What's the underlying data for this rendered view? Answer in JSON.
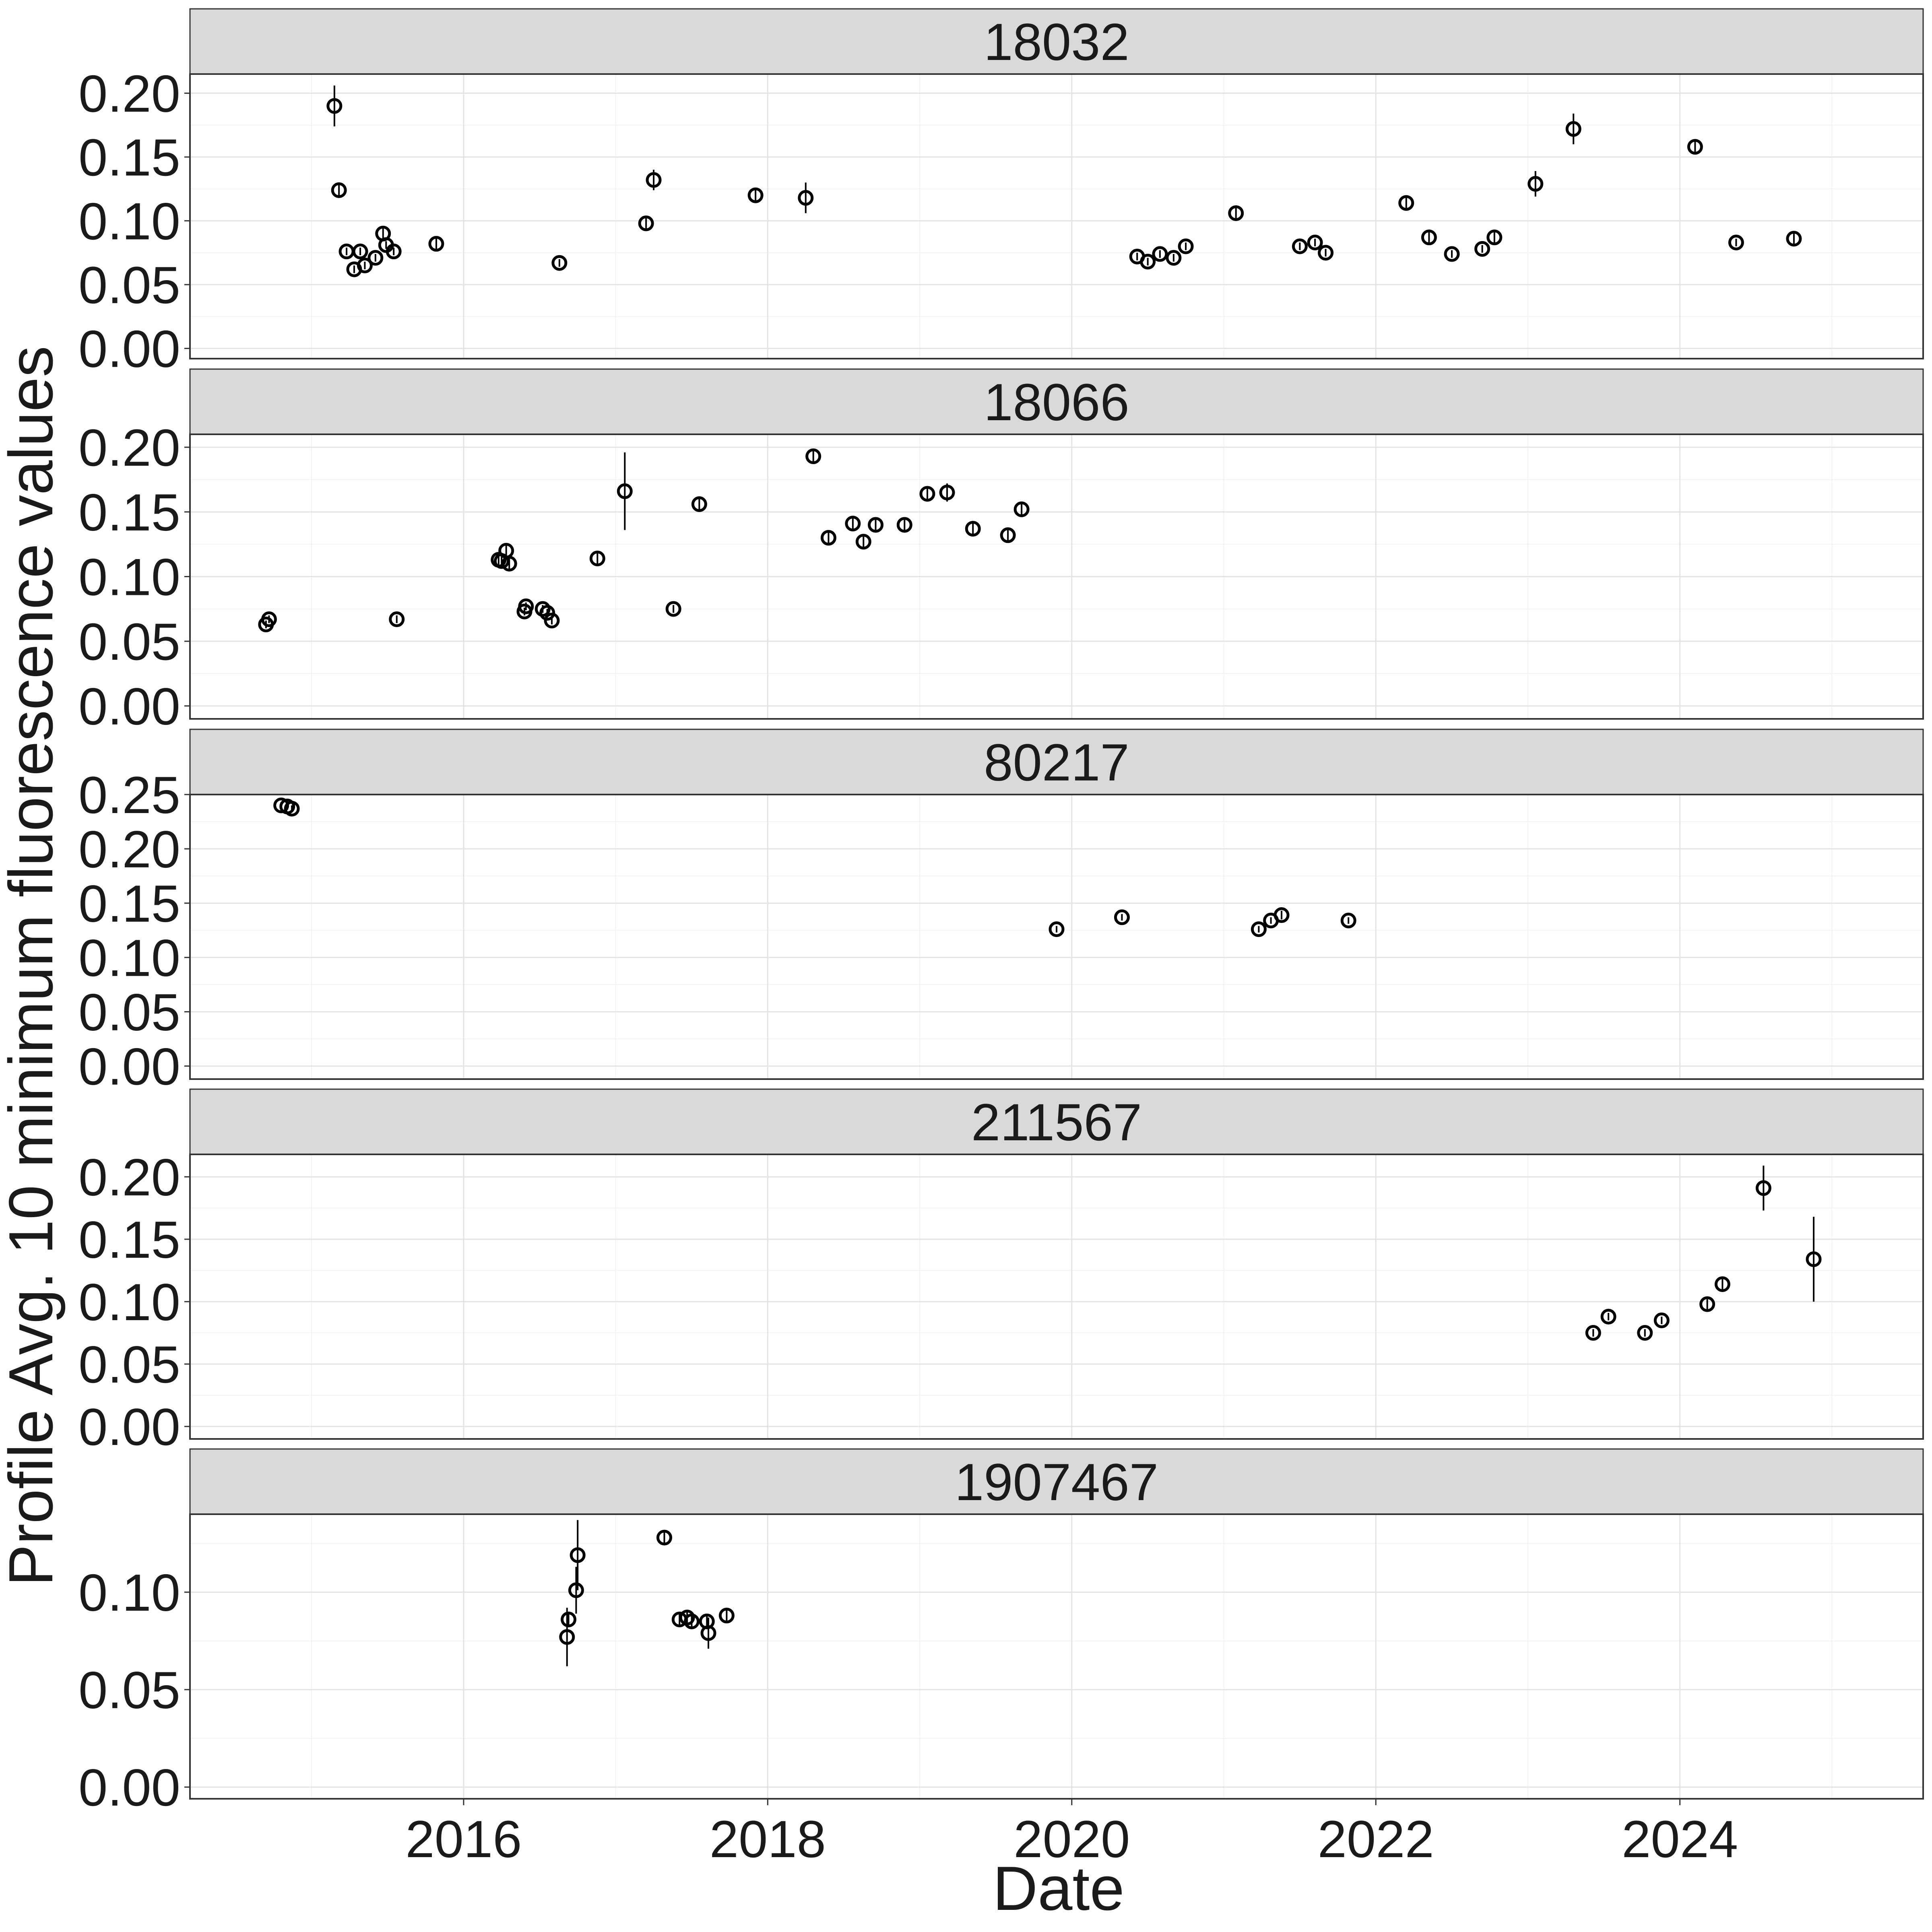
{
  "chart_data": {
    "type": "scatter",
    "xlabel": "Date",
    "ylabel": "Profile Avg. 10 minimum fluorescence values",
    "x_ticks": [
      "2016",
      "2018",
      "2020",
      "2022",
      "2024"
    ],
    "x_tick_values": [
      2016,
      2018,
      2020,
      2022,
      2024
    ],
    "xlim": [
      2014.2,
      2025.6
    ],
    "grid": true,
    "legend": "none",
    "point_style": "open-circle-with-error-bar",
    "panels": [
      {
        "label": "18032",
        "ylim": [
          -0.008,
          0.215
        ],
        "y_ticks": [
          "0.00",
          "0.05",
          "0.10",
          "0.15",
          "0.20"
        ],
        "y_tick_values": [
          0,
          0.05,
          0.1,
          0.15,
          0.2
        ],
        "points": [
          {
            "x": 2015.15,
            "y": 0.19,
            "err": 0.016
          },
          {
            "x": 2015.18,
            "y": 0.124,
            "err": 0.004
          },
          {
            "x": 2015.23,
            "y": 0.076,
            "err": 0.003
          },
          {
            "x": 2015.28,
            "y": 0.062,
            "err": 0.003
          },
          {
            "x": 2015.32,
            "y": 0.076,
            "err": 0.003
          },
          {
            "x": 2015.35,
            "y": 0.065,
            "err": 0.003
          },
          {
            "x": 2015.42,
            "y": 0.071,
            "err": 0.003
          },
          {
            "x": 2015.47,
            "y": 0.09,
            "err": 0.004
          },
          {
            "x": 2015.49,
            "y": 0.081,
            "err": 0.003
          },
          {
            "x": 2015.54,
            "y": 0.076,
            "err": 0.003
          },
          {
            "x": 2015.82,
            "y": 0.082,
            "err": 0.004
          },
          {
            "x": 2016.63,
            "y": 0.067,
            "err": 0.003
          },
          {
            "x": 2017.2,
            "y": 0.098,
            "err": 0.004
          },
          {
            "x": 2017.25,
            "y": 0.132,
            "err": 0.008
          },
          {
            "x": 2017.92,
            "y": 0.12,
            "err": 0.004
          },
          {
            "x": 2018.25,
            "y": 0.118,
            "err": 0.012
          },
          {
            "x": 2020.43,
            "y": 0.072,
            "err": 0.003
          },
          {
            "x": 2020.5,
            "y": 0.068,
            "err": 0.003
          },
          {
            "x": 2020.58,
            "y": 0.074,
            "err": 0.003
          },
          {
            "x": 2020.67,
            "y": 0.071,
            "err": 0.003
          },
          {
            "x": 2020.75,
            "y": 0.08,
            "err": 0.003
          },
          {
            "x": 2021.08,
            "y": 0.106,
            "err": 0.004
          },
          {
            "x": 2021.5,
            "y": 0.08,
            "err": 0.003
          },
          {
            "x": 2021.6,
            "y": 0.083,
            "err": 0.003
          },
          {
            "x": 2021.67,
            "y": 0.075,
            "err": 0.003
          },
          {
            "x": 2022.2,
            "y": 0.114,
            "err": 0.004
          },
          {
            "x": 2022.35,
            "y": 0.087,
            "err": 0.004
          },
          {
            "x": 2022.5,
            "y": 0.074,
            "err": 0.003
          },
          {
            "x": 2022.7,
            "y": 0.078,
            "err": 0.003
          },
          {
            "x": 2022.78,
            "y": 0.087,
            "err": 0.004
          },
          {
            "x": 2023.05,
            "y": 0.129,
            "err": 0.01
          },
          {
            "x": 2023.3,
            "y": 0.172,
            "err": 0.012
          },
          {
            "x": 2024.1,
            "y": 0.158,
            "err": 0.004
          },
          {
            "x": 2024.37,
            "y": 0.083,
            "err": 0.003
          },
          {
            "x": 2024.75,
            "y": 0.086,
            "err": 0.004
          }
        ]
      },
      {
        "label": "18066",
        "ylim": [
          -0.01,
          0.21
        ],
        "y_ticks": [
          "0.00",
          "0.05",
          "0.10",
          "0.15",
          "0.20"
        ],
        "y_tick_values": [
          0,
          0.05,
          0.1,
          0.15,
          0.2
        ],
        "points": [
          {
            "x": 2014.7,
            "y": 0.063,
            "err": 0.003
          },
          {
            "x": 2014.72,
            "y": 0.067,
            "err": 0.003
          },
          {
            "x": 2015.56,
            "y": 0.067,
            "err": 0.003
          },
          {
            "x": 2016.23,
            "y": 0.113,
            "err": 0.004
          },
          {
            "x": 2016.25,
            "y": 0.112,
            "err": 0.004
          },
          {
            "x": 2016.28,
            "y": 0.12,
            "err": 0.005
          },
          {
            "x": 2016.3,
            "y": 0.11,
            "err": 0.004
          },
          {
            "x": 2016.4,
            "y": 0.073,
            "err": 0.003
          },
          {
            "x": 2016.41,
            "y": 0.077,
            "err": 0.003
          },
          {
            "x": 2016.52,
            "y": 0.075,
            "err": 0.003
          },
          {
            "x": 2016.55,
            "y": 0.072,
            "err": 0.003
          },
          {
            "x": 2016.58,
            "y": 0.066,
            "err": 0.003
          },
          {
            "x": 2016.88,
            "y": 0.114,
            "err": 0.004
          },
          {
            "x": 2017.06,
            "y": 0.166,
            "err": 0.03
          },
          {
            "x": 2017.38,
            "y": 0.075,
            "err": 0.003
          },
          {
            "x": 2017.55,
            "y": 0.156,
            "err": 0.005
          },
          {
            "x": 2018.3,
            "y": 0.193,
            "err": 0.005
          },
          {
            "x": 2018.4,
            "y": 0.13,
            "err": 0.004
          },
          {
            "x": 2018.56,
            "y": 0.141,
            "err": 0.004
          },
          {
            "x": 2018.63,
            "y": 0.127,
            "err": 0.004
          },
          {
            "x": 2018.71,
            "y": 0.14,
            "err": 0.005
          },
          {
            "x": 2018.9,
            "y": 0.14,
            "err": 0.004
          },
          {
            "x": 2019.05,
            "y": 0.164,
            "err": 0.004
          },
          {
            "x": 2019.18,
            "y": 0.165,
            "err": 0.007
          },
          {
            "x": 2019.35,
            "y": 0.137,
            "err": 0.004
          },
          {
            "x": 2019.58,
            "y": 0.132,
            "err": 0.004
          },
          {
            "x": 2019.67,
            "y": 0.152,
            "err": 0.004
          }
        ]
      },
      {
        "label": "80217",
        "ylim": [
          -0.012,
          0.25
        ],
        "y_ticks": [
          "0.00",
          "0.05",
          "0.10",
          "0.15",
          "0.20",
          "0.25"
        ],
        "y_tick_values": [
          0,
          0.05,
          0.1,
          0.15,
          0.2,
          0.25
        ],
        "points": [
          {
            "x": 2014.8,
            "y": 0.24,
            "err": 0.003
          },
          {
            "x": 2014.84,
            "y": 0.239,
            "err": 0.003
          },
          {
            "x": 2014.87,
            "y": 0.237,
            "err": 0.003
          },
          {
            "x": 2019.9,
            "y": 0.126,
            "err": 0.003
          },
          {
            "x": 2020.33,
            "y": 0.137,
            "err": 0.003
          },
          {
            "x": 2021.23,
            "y": 0.126,
            "err": 0.003
          },
          {
            "x": 2021.31,
            "y": 0.134,
            "err": 0.003
          },
          {
            "x": 2021.38,
            "y": 0.139,
            "err": 0.004
          },
          {
            "x": 2021.82,
            "y": 0.134,
            "err": 0.003
          }
        ]
      },
      {
        "label": "211567",
        "ylim": [
          -0.01,
          0.218
        ],
        "y_ticks": [
          "0.00",
          "0.05",
          "0.10",
          "0.15",
          "0.20"
        ],
        "y_tick_values": [
          0,
          0.05,
          0.1,
          0.15,
          0.2
        ],
        "points": [
          {
            "x": 2023.43,
            "y": 0.075,
            "err": 0.003
          },
          {
            "x": 2023.53,
            "y": 0.088,
            "err": 0.003
          },
          {
            "x": 2023.77,
            "y": 0.075,
            "err": 0.003
          },
          {
            "x": 2023.88,
            "y": 0.085,
            "err": 0.003
          },
          {
            "x": 2024.18,
            "y": 0.098,
            "err": 0.004
          },
          {
            "x": 2024.28,
            "y": 0.114,
            "err": 0.005
          },
          {
            "x": 2024.55,
            "y": 0.191,
            "err": 0.018
          },
          {
            "x": 2024.88,
            "y": 0.134,
            "err": 0.034
          }
        ]
      },
      {
        "label": "1907467",
        "ylim": [
          -0.006,
          0.14
        ],
        "y_ticks": [
          "0.00",
          "0.05",
          "0.10"
        ],
        "y_tick_values": [
          0,
          0.05,
          0.1
        ],
        "points": [
          {
            "x": 2016.68,
            "y": 0.077,
            "err": 0.015
          },
          {
            "x": 2016.69,
            "y": 0.086,
            "err": 0.004
          },
          {
            "x": 2016.74,
            "y": 0.101,
            "err": 0.012
          },
          {
            "x": 2016.75,
            "y": 0.119,
            "err": 0.018
          },
          {
            "x": 2017.32,
            "y": 0.128,
            "err": 0.003
          },
          {
            "x": 2017.42,
            "y": 0.086,
            "err": 0.003
          },
          {
            "x": 2017.47,
            "y": 0.087,
            "err": 0.003
          },
          {
            "x": 2017.5,
            "y": 0.085,
            "err": 0.003
          },
          {
            "x": 2017.6,
            "y": 0.085,
            "err": 0.003
          },
          {
            "x": 2017.61,
            "y": 0.079,
            "err": 0.008
          },
          {
            "x": 2017.73,
            "y": 0.088,
            "err": 0.003
          }
        ]
      }
    ]
  }
}
